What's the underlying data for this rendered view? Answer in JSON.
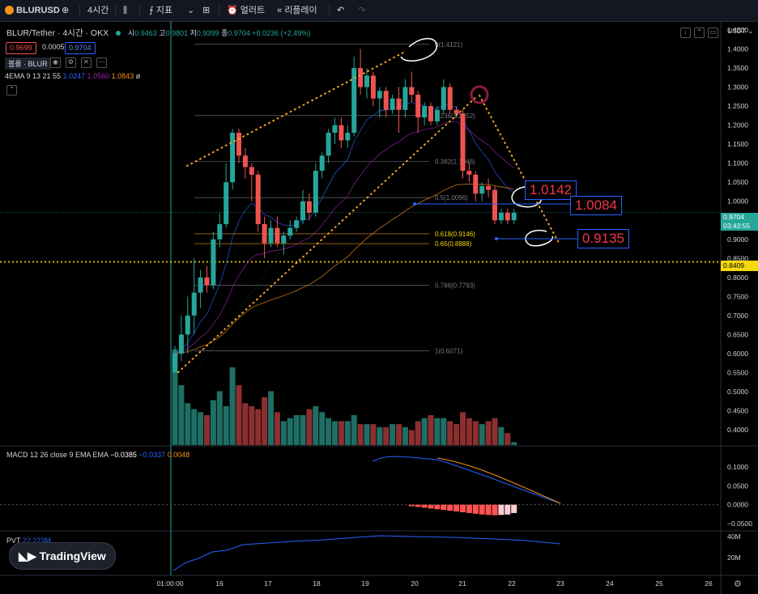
{
  "toolbar": {
    "symbol": "BLURUSD",
    "interval": "4시간",
    "indicators": "지표",
    "alert": "얼러트",
    "replay": "리플레이"
  },
  "legend": {
    "title": "BLUR/Tether · 4시간 · OKX",
    "o_label": "시",
    "o": "0.9463",
    "h_label": "고",
    "h": "0.9801",
    "l_label": "저",
    "l": "0.9399",
    "c_label": "종",
    "c": "0.9704",
    "chg": "+0.0236 (+2.49%)",
    "bid": "0.9699",
    "spread": "0.0005",
    "ask": "0.9704",
    "vol_label": "볼륨 · BLUR",
    "ema_label": "4EMA 9 13 21 55",
    "ema1": "1.0247",
    "ema2": "1.0560",
    "ema3": "1.0843",
    "ema4": "ø"
  },
  "macd_legend": {
    "label": "MACD 12 26 close 9 EMA EMA",
    "v1": "−0.0385",
    "v2": "−0.0337",
    "v3": "0.0048"
  },
  "pvt_legend": {
    "label": "PVT",
    "value": "22.273M"
  },
  "currency": "USDT",
  "price_tag": {
    "price": "0.9704",
    "countdown": "03:43:55"
  },
  "line_tag": "0.8409",
  "callouts": [
    "1.0142",
    "1.0084",
    "0.9135"
  ],
  "logo": "TradingView",
  "colors": {
    "up": "#26a69a",
    "down": "#ef5350",
    "fib": "#787b86",
    "hline": "#f5d90a",
    "ema": "#f7931a"
  },
  "chart_data": {
    "type": "candlestick",
    "y_ticks": [
      1.45,
      1.4,
      1.35,
      1.3,
      1.25,
      1.2,
      1.15,
      1.1,
      1.05,
      1.0,
      0.95,
      0.9,
      0.85,
      0.8,
      0.75,
      0.7,
      0.65,
      0.6,
      0.55,
      0.5,
      0.45,
      0.4
    ],
    "x_ticks": [
      "01:00:00",
      "16",
      "17",
      "18",
      "19",
      "20",
      "21",
      "22",
      "23",
      "24",
      "25",
      "26"
    ],
    "ylim": [
      0.38,
      1.46
    ],
    "horizontal_line": 0.8409,
    "fib_levels": [
      {
        "label": "0(1.4121)",
        "value": 1.4121
      },
      {
        "label": "0.236(1.2252)",
        "value": 1.2252
      },
      {
        "label": "0.382(1.1046)",
        "value": 1.1046
      },
      {
        "label": "0.5(1.0096)",
        "value": 1.0096
      },
      {
        "label": "0.618(0.9146)",
        "value": 0.9146
      },
      {
        "label": "0.65(0.8888)",
        "value": 0.8888
      },
      {
        "label": "0.786(0.7793)",
        "value": 0.7793
      },
      {
        "label": "1(0.6071)",
        "value": 0.6071
      }
    ],
    "candles": [
      {
        "o": 0.55,
        "h": 0.62,
        "l": 0.55,
        "c": 0.6
      },
      {
        "o": 0.6,
        "h": 0.7,
        "l": 0.58,
        "c": 0.65
      },
      {
        "o": 0.65,
        "h": 0.75,
        "l": 0.6,
        "c": 0.7
      },
      {
        "o": 0.7,
        "h": 0.85,
        "l": 0.65,
        "c": 0.76
      },
      {
        "o": 0.76,
        "h": 0.82,
        "l": 0.72,
        "c": 0.8
      },
      {
        "o": 0.8,
        "h": 0.83,
        "l": 0.76,
        "c": 0.78
      },
      {
        "o": 0.78,
        "h": 0.92,
        "l": 0.77,
        "c": 0.9
      },
      {
        "o": 0.9,
        "h": 0.97,
        "l": 0.88,
        "c": 0.94
      },
      {
        "o": 0.94,
        "h": 1.1,
        "l": 0.93,
        "c": 1.05
      },
      {
        "o": 1.05,
        "h": 1.19,
        "l": 1.03,
        "c": 1.18
      },
      {
        "o": 1.18,
        "h": 1.19,
        "l": 1.1,
        "c": 1.12
      },
      {
        "o": 1.12,
        "h": 1.14,
        "l": 1.06,
        "c": 1.09
      },
      {
        "o": 1.09,
        "h": 1.1,
        "l": 1.0,
        "c": 1.07
      },
      {
        "o": 1.07,
        "h": 1.08,
        "l": 0.92,
        "c": 0.94
      },
      {
        "o": 0.94,
        "h": 0.96,
        "l": 0.85,
        "c": 0.89
      },
      {
        "o": 0.89,
        "h": 0.95,
        "l": 0.88,
        "c": 0.93
      },
      {
        "o": 0.93,
        "h": 0.96,
        "l": 0.88,
        "c": 0.89
      },
      {
        "o": 0.89,
        "h": 0.92,
        "l": 0.86,
        "c": 0.91
      },
      {
        "o": 0.91,
        "h": 0.95,
        "l": 0.9,
        "c": 0.93
      },
      {
        "o": 0.93,
        "h": 0.96,
        "l": 0.92,
        "c": 0.95
      },
      {
        "o": 0.95,
        "h": 1.03,
        "l": 0.94,
        "c": 1.0
      },
      {
        "o": 1.0,
        "h": 1.02,
        "l": 0.95,
        "c": 0.97
      },
      {
        "o": 0.97,
        "h": 1.1,
        "l": 0.96,
        "c": 1.08
      },
      {
        "o": 1.08,
        "h": 1.13,
        "l": 1.06,
        "c": 1.12
      },
      {
        "o": 1.12,
        "h": 1.19,
        "l": 1.1,
        "c": 1.18
      },
      {
        "o": 1.18,
        "h": 1.22,
        "l": 1.15,
        "c": 1.2
      },
      {
        "o": 1.2,
        "h": 1.22,
        "l": 1.14,
        "c": 1.16
      },
      {
        "o": 1.16,
        "h": 1.2,
        "l": 1.14,
        "c": 1.18
      },
      {
        "o": 1.18,
        "h": 1.38,
        "l": 1.17,
        "c": 1.35
      },
      {
        "o": 1.35,
        "h": 1.4,
        "l": 1.28,
        "c": 1.3
      },
      {
        "o": 1.3,
        "h": 1.35,
        "l": 1.27,
        "c": 1.33
      },
      {
        "o": 1.33,
        "h": 1.34,
        "l": 1.25,
        "c": 1.27
      },
      {
        "o": 1.27,
        "h": 1.3,
        "l": 1.22,
        "c": 1.29
      },
      {
        "o": 1.29,
        "h": 1.3,
        "l": 1.22,
        "c": 1.24
      },
      {
        "o": 1.24,
        "h": 1.28,
        "l": 1.23,
        "c": 1.27
      },
      {
        "o": 1.27,
        "h": 1.3,
        "l": 1.18,
        "c": 1.24
      },
      {
        "o": 1.24,
        "h": 1.32,
        "l": 1.22,
        "c": 1.3
      },
      {
        "o": 1.3,
        "h": 1.34,
        "l": 1.26,
        "c": 1.28
      },
      {
        "o": 1.28,
        "h": 1.29,
        "l": 1.18,
        "c": 1.22
      },
      {
        "o": 1.22,
        "h": 1.26,
        "l": 1.2,
        "c": 1.25
      },
      {
        "o": 1.25,
        "h": 1.26,
        "l": 1.2,
        "c": 1.21
      },
      {
        "o": 1.21,
        "h": 1.25,
        "l": 1.2,
        "c": 1.24
      },
      {
        "o": 1.24,
        "h": 1.32,
        "l": 1.23,
        "c": 1.3
      },
      {
        "o": 1.3,
        "h": 1.31,
        "l": 1.23,
        "c": 1.24
      },
      {
        "o": 1.24,
        "h": 1.25,
        "l": 1.22,
        "c": 1.23
      },
      {
        "o": 1.23,
        "h": 1.24,
        "l": 1.06,
        "c": 1.08
      },
      {
        "o": 1.08,
        "h": 1.1,
        "l": 1.05,
        "c": 1.07
      },
      {
        "o": 1.07,
        "h": 1.08,
        "l": 1.0,
        "c": 1.02
      },
      {
        "o": 1.02,
        "h": 1.05,
        "l": 1.0,
        "c": 1.04
      },
      {
        "o": 1.04,
        "h": 1.06,
        "l": 1.01,
        "c": 1.03
      },
      {
        "o": 1.03,
        "h": 1.04,
        "l": 0.94,
        "c": 0.95
      },
      {
        "o": 0.95,
        "h": 0.98,
        "l": 0.94,
        "c": 0.97
      },
      {
        "o": 0.97,
        "h": 0.98,
        "l": 0.94,
        "c": 0.95
      },
      {
        "o": 0.95,
        "h": 0.98,
        "l": 0.94,
        "c": 0.97
      }
    ],
    "volume": [
      32,
      20,
      14,
      12,
      11,
      10,
      15,
      18,
      13,
      26,
      20,
      14,
      13,
      12,
      16,
      18,
      11,
      8,
      9,
      10,
      10,
      12,
      13,
      11,
      9,
      8,
      8,
      8,
      10,
      7,
      7,
      7,
      6,
      6,
      7,
      7,
      6,
      5,
      8,
      9,
      10,
      9,
      9,
      8,
      7,
      11,
      9,
      8,
      7,
      8,
      9,
      6,
      4,
      1
    ],
    "macd_hist": [
      -0.004,
      -0.006,
      -0.008,
      -0.01,
      -0.012,
      -0.014,
      -0.016,
      -0.018,
      -0.02,
      -0.022,
      -0.024,
      -0.026,
      -0.027,
      -0.028,
      -0.027,
      -0.026,
      -0.022
    ]
  }
}
